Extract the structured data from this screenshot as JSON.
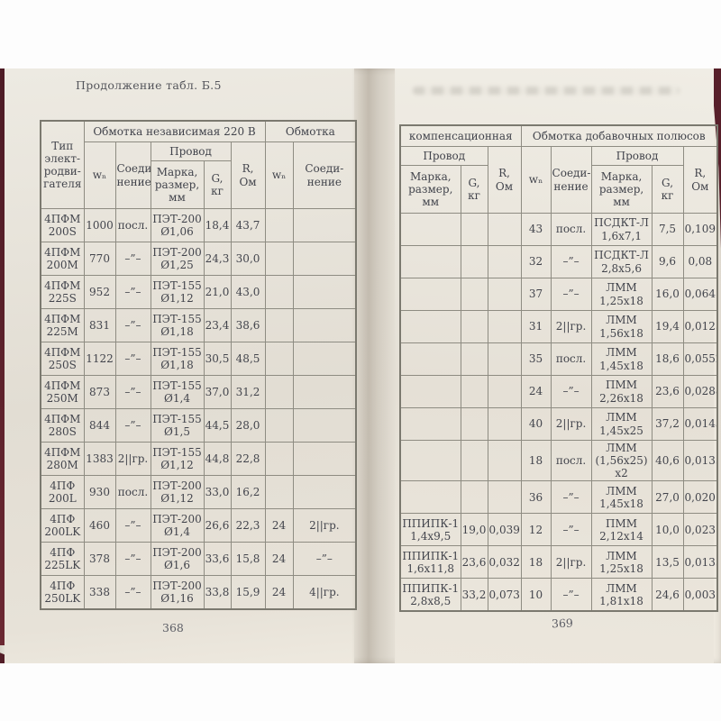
{
  "photo": {
    "caption": "Продолжение табл. Б.5",
    "page_number_left": "368",
    "page_number_right": "369"
  },
  "left_table": {
    "headers": {
      "motor_type": "Тип\nэлект-\nродви-\nгателя",
      "group_independent": "Обмотка независимая 220 В",
      "group_winding": "Обмотка",
      "wn": "wₙ",
      "connection": "Соеди-\nнение",
      "wire": "Провод",
      "mark_size": "Марка,\nразмер,\nмм",
      "g_kg": "G,\nкг",
      "r_ohm": "R,\nОм",
      "wn2": "wₙ",
      "connection2": "Соеди-\nнение"
    },
    "rows": [
      [
        "4ПФМ\n200S",
        "1000",
        "посл.",
        "ПЭТ-200\nØ1,06",
        "18,4",
        "43,7",
        "",
        ""
      ],
      [
        "4ПФМ\n200M",
        "770",
        "–”–",
        "ПЭТ-200\nØ1,25",
        "24,3",
        "30,0",
        "",
        ""
      ],
      [
        "4ПФМ\n225S",
        "952",
        "–”–",
        "ПЭТ-155\nØ1,12",
        "21,0",
        "43,0",
        "",
        ""
      ],
      [
        "4ПФМ\n225M",
        "831",
        "–”–",
        "ПЭТ-155\nØ1,18",
        "23,4",
        "38,6",
        "",
        ""
      ],
      [
        "4ПФМ\n250S",
        "1122",
        "–”–",
        "ПЭТ-155\nØ1,18",
        "30,5",
        "48,5",
        "",
        ""
      ],
      [
        "4ПФМ\n250M",
        "873",
        "–”–",
        "ПЭТ-155\nØ1,4",
        "37,0",
        "31,2",
        "",
        ""
      ],
      [
        "4ПФМ\n280S",
        "844",
        "–”–",
        "ПЭТ-155\nØ1,5",
        "44,5",
        "28,0",
        "",
        ""
      ],
      [
        "4ПФМ\n280M",
        "1383",
        "2||гр.",
        "ПЭТ-155\nØ1,12",
        "44,8",
        "22,8",
        "",
        ""
      ],
      [
        "4ПФ\n200L",
        "930",
        "посл.",
        "ПЭТ-200\nØ1,12",
        "33,0",
        "16,2",
        "",
        ""
      ],
      [
        "4ПФ\n200LK",
        "460",
        "–”–",
        "ПЭТ-200\nØ1,4",
        "26,6",
        "22,3",
        "24",
        "2||гр."
      ],
      [
        "4ПФ\n225LK",
        "378",
        "–”–",
        "ПЭТ-200\nØ1,6",
        "33,6",
        "15,8",
        "24",
        "–”–"
      ],
      [
        "4ПФ\n250LK",
        "338",
        "–”–",
        "ПЭТ-200\nØ1,16",
        "33,8",
        "15,9",
        "24",
        "4||гр."
      ]
    ]
  },
  "right_table": {
    "headers": {
      "group_compensation": "компенсационная",
      "group_additional": "Обмотка добавочных полюсов",
      "wire": "Провод",
      "mark_size": "Марка,\nразмер, мм",
      "g_kg": "G,\nкг",
      "r_ohm": "R,\nОм",
      "wn": "wₙ",
      "connection": "Соеди-\nнение",
      "wire2": "Провод",
      "mark_size2": "Марка,\nразмер,\nмм",
      "g_kg2": "G,\nкг",
      "r_ohm2": "R,\nОм"
    },
    "rows": [
      [
        "",
        "",
        "",
        "43",
        "посл.",
        "ПСДКТ-Л\n1,6х7,1",
        "7,5",
        "0,109"
      ],
      [
        "",
        "",
        "",
        "32",
        "–”–",
        "ПСДКТ-Л\n2,8х5,6",
        "9,6",
        "0,08"
      ],
      [
        "",
        "",
        "",
        "37",
        "–”–",
        "ЛММ\n1,25х18",
        "16,0",
        "0,064"
      ],
      [
        "",
        "",
        "",
        "31",
        "2||гр.",
        "ЛММ\n1,56х18",
        "19,4",
        "0,0125"
      ],
      [
        "",
        "",
        "",
        "35",
        "посл.",
        "ЛММ\n1,45х18",
        "18,6",
        "0,0552"
      ],
      [
        "",
        "",
        "",
        "24",
        "–”–",
        "ПММ\n2,26х18",
        "23,6",
        "0,0288"
      ],
      [
        "",
        "",
        "",
        "40",
        "2||гр.",
        "ЛММ\n1,45х25",
        "37,2",
        "0,0143"
      ],
      [
        "",
        "",
        "",
        "18",
        "посл.",
        "ЛММ\n(1,56х25)\nх2",
        "40,6",
        "0,0135"
      ],
      [
        "",
        "",
        "",
        "36",
        "–”–",
        "ЛММ\n1,45х18",
        "27,0",
        "0,0201"
      ],
      [
        "ППИПК-1\n1,4х9,5",
        "19,0",
        "0,039",
        "12",
        "–”–",
        "ПММ\n2,12х14",
        "10,0",
        "0,023"
      ],
      [
        "ППИПК-1\n1,6х11,8",
        "23,6",
        "0,032",
        "18",
        "2||гр.",
        "ЛММ\n1,25х18",
        "13,5",
        "0,0135"
      ],
      [
        "ППИПК-1\n2,8х8,5",
        "33,2",
        "0,073",
        "10",
        "–”–",
        "ЛММ\n1,81х18",
        "24,6",
        "0,003"
      ]
    ]
  }
}
